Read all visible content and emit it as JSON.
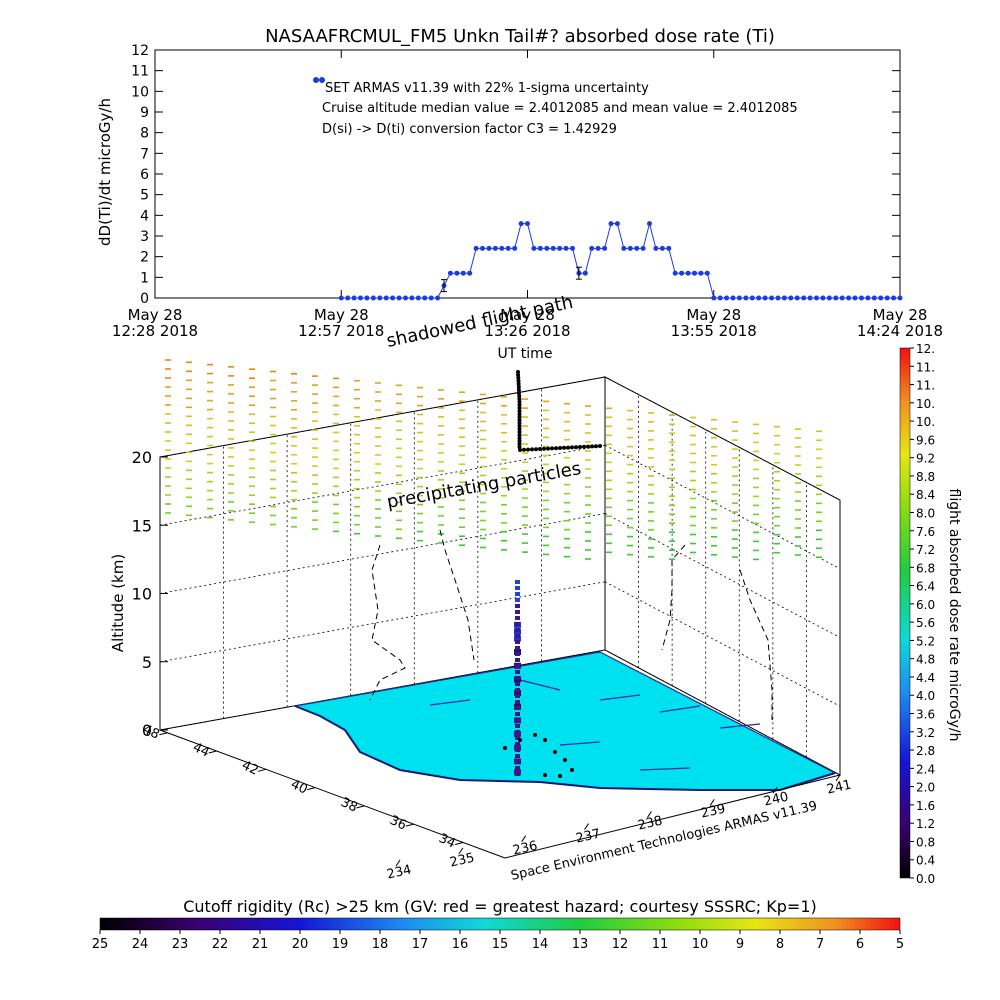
{
  "chart_data": [
    {
      "type": "scatter",
      "title": "NASAAFRCMUL_FM5 Unkn Tail#? absorbed dose rate (Ti)",
      "ylabel": "dD(Ti)/dt microGy/h",
      "xlabel": "UT time",
      "ylim": [
        0,
        12
      ],
      "y_ticks": [
        "0",
        "1",
        "2",
        "3",
        "4",
        "5",
        "6",
        "7",
        "8",
        "9",
        "10",
        "11",
        "12"
      ],
      "x_ticks": [
        {
          "line1": "May 28",
          "line2": "12:28 2018"
        },
        {
          "line1": "May 28",
          "line2": "12:57 2018"
        },
        {
          "line1": "May 28",
          "line2": "13:26 2018"
        },
        {
          "line1": "May 28",
          "line2": "13:55 2018"
        },
        {
          "line1": "May 28",
          "line2": "14:24 2018"
        }
      ],
      "legend": "SET ARMAS v11.39 with 22% 1-sigma uncertainty",
      "annotations": [
        "Cruise altitude median value = 2.4012085 and mean value = 2.4012085",
        "D(si) -> D(ti) conversion factor C3 = 1.42929"
      ],
      "series": [
        {
          "color": "#1e3cdc",
          "values": [
            {
              "t": "12:57",
              "d": 0.0
            },
            {
              "t": "13:00",
              "d": 0.0
            },
            {
              "t": "13:03",
              "d": 0.0
            },
            {
              "t": "13:06",
              "d": 0.0
            },
            {
              "t": "13:09",
              "d": 0.0
            },
            {
              "t": "13:12",
              "d": 0.0
            },
            {
              "t": "13:13",
              "d": 0.6
            },
            {
              "t": "13:14",
              "d": 1.2
            },
            {
              "t": "13:17",
              "d": 1.2
            },
            {
              "t": "13:18",
              "d": 2.4
            },
            {
              "t": "13:24",
              "d": 2.4
            },
            {
              "t": "13:25",
              "d": 3.6
            },
            {
              "t": "13:26",
              "d": 3.6
            },
            {
              "t": "13:27",
              "d": 2.4
            },
            {
              "t": "13:33",
              "d": 2.4
            },
            {
              "t": "13:34",
              "d": 1.2
            },
            {
              "t": "13:35",
              "d": 1.2
            },
            {
              "t": "13:36",
              "d": 2.4
            },
            {
              "t": "13:38",
              "d": 2.4
            },
            {
              "t": "13:39",
              "d": 3.6
            },
            {
              "t": "13:40",
              "d": 3.6
            },
            {
              "t": "13:41",
              "d": 2.4
            },
            {
              "t": "13:44",
              "d": 2.4
            },
            {
              "t": "13:45",
              "d": 3.6
            },
            {
              "t": "13:46",
              "d": 2.4
            },
            {
              "t": "13:48",
              "d": 2.4
            },
            {
              "t": "13:49",
              "d": 1.2
            },
            {
              "t": "13:54",
              "d": 1.2
            },
            {
              "t": "13:55",
              "d": 0.0
            },
            {
              "t": "14:24",
              "d": 0.0
            }
          ]
        }
      ]
    },
    {
      "type": "scatter",
      "ylabel": "Altitude (km)",
      "z_ticks": [
        "0",
        "5",
        "10",
        "15",
        "20"
      ],
      "lat_ticks": [
        "48",
        "44",
        "42",
        "40",
        "38",
        "36",
        "34"
      ],
      "lon_ticks": [
        "234",
        "235",
        "236",
        "237",
        "238",
        "239",
        "240",
        "241"
      ],
      "labels": [
        "shadowed flight path",
        "precipitating particles",
        "Space Environment Technologies ARMAS v11.39"
      ],
      "altitude_track_km": [
        0.2,
        1,
        2,
        3,
        4,
        5,
        6,
        7,
        8,
        9,
        10,
        10.5,
        10.5,
        10.5,
        11
      ]
    },
    {
      "type": "heatmap",
      "title": "flight absorbed dose rate microGy/h",
      "ticks": [
        "0.0",
        "0.4",
        "0.8",
        "1.2",
        "1.6",
        "2.0",
        "2.4",
        "2.8",
        "3.2",
        "3.6",
        "4.0",
        "4.4",
        "4.8",
        "5.2",
        "5.6",
        "6.0",
        "6.4",
        "6.8",
        "7.2",
        "7.6",
        "8.0",
        "8.4",
        "8.8",
        "9.2",
        "9.6",
        "10.",
        "10.",
        "11.",
        "11.",
        "12."
      ]
    },
    {
      "type": "heatmap",
      "title": "Cutoff rigidity (Rc) >25 km (GV: red = greatest hazard; courtesy SSSRC; Kp=1)",
      "ticks": [
        "25",
        "24",
        "23",
        "22",
        "21",
        "20",
        "19",
        "18",
        "17",
        "16",
        "15",
        "14",
        "13",
        "12",
        "11",
        "10",
        "9",
        "8",
        "7",
        "6",
        "5"
      ]
    }
  ]
}
